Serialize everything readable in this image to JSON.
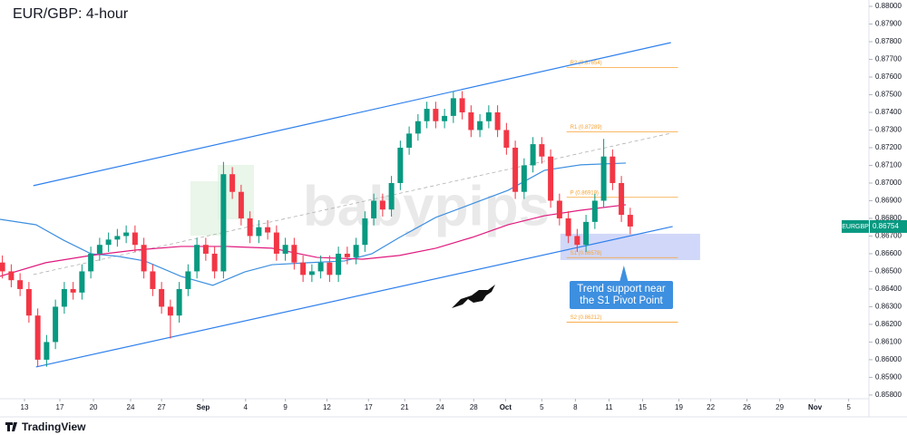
{
  "chart_data": {
    "type": "candlestick",
    "title": "EUR/GBP: 4-hour",
    "watermark": "babypips",
    "brand": "TradingView",
    "symbol": "EURGBP",
    "last_price": {
      "value": 0.86754,
      "label": "0.86754"
    },
    "grid": false,
    "xlim": [
      -2.77,
      95.49
    ],
    "ylim": [
      0.85779,
      0.88036
    ],
    "xticks": [
      {
        "value": 0,
        "label": "13"
      },
      {
        "value": 4,
        "label": "17"
      },
      {
        "value": 7.8,
        "label": "20"
      },
      {
        "value": 12,
        "label": "24"
      },
      {
        "value": 15.5,
        "label": "27"
      },
      {
        "value": 20.2,
        "label": "Sep"
      },
      {
        "value": 25,
        "label": "4"
      },
      {
        "value": 29.5,
        "label": "9"
      },
      {
        "value": 34.2,
        "label": "12"
      },
      {
        "value": 38.9,
        "label": "17"
      },
      {
        "value": 43,
        "label": "21"
      },
      {
        "value": 47,
        "label": "24"
      },
      {
        "value": 50.8,
        "label": "28"
      },
      {
        "value": 54.4,
        "label": "Oct"
      },
      {
        "value": 58.5,
        "label": "5"
      },
      {
        "value": 62.3,
        "label": "8"
      },
      {
        "value": 66.1,
        "label": "11"
      },
      {
        "value": 69.9,
        "label": "15"
      },
      {
        "value": 74,
        "label": "19"
      },
      {
        "value": 77.6,
        "label": "22"
      },
      {
        "value": 81.7,
        "label": "26"
      },
      {
        "value": 85.4,
        "label": "29"
      },
      {
        "value": 89.4,
        "label": "Nov"
      },
      {
        "value": 93.2,
        "label": "5"
      }
    ],
    "yticks": [
      {
        "value": 0.858,
        "label": "0.85800"
      },
      {
        "value": 0.859,
        "label": "0.85900"
      },
      {
        "value": 0.86,
        "label": "0.86000"
      },
      {
        "value": 0.861,
        "label": "0.86100"
      },
      {
        "value": 0.862,
        "label": "0.86200"
      },
      {
        "value": 0.863,
        "label": "0.86300"
      },
      {
        "value": 0.864,
        "label": "0.86400"
      },
      {
        "value": 0.865,
        "label": "0.86500"
      },
      {
        "value": 0.866,
        "label": "0.86600"
      },
      {
        "value": 0.867,
        "label": "0.86700"
      },
      {
        "value": 0.868,
        "label": "0.86800"
      },
      {
        "value": 0.869,
        "label": "0.86900"
      },
      {
        "value": 0.87,
        "label": "0.87000"
      },
      {
        "value": 0.871,
        "label": "0.87100"
      },
      {
        "value": 0.872,
        "label": "0.87200"
      },
      {
        "value": 0.873,
        "label": "0.87300"
      },
      {
        "value": 0.874,
        "label": "0.87400"
      },
      {
        "value": 0.875,
        "label": "0.87500"
      },
      {
        "value": 0.876,
        "label": "0.87600"
      },
      {
        "value": 0.877,
        "label": "0.87700"
      },
      {
        "value": 0.878,
        "label": "0.87800"
      },
      {
        "value": 0.879,
        "label": "0.87900"
      },
      {
        "value": 0.88,
        "label": "0.88000"
      }
    ],
    "candles": {
      "up_color": "#089981",
      "down_color": "#f23645",
      "x": [
        -2.5,
        -1.5,
        -0.5,
        0.5,
        1.5,
        2.5,
        3.5,
        4.5,
        5.5,
        6.5,
        7.5,
        8.5,
        9.5,
        10.5,
        11.5,
        12.5,
        13.5,
        14.5,
        15.5,
        16.5,
        17.5,
        18.5,
        19.5,
        20.5,
        21.5,
        22.5,
        23.5,
        24.5,
        25.5,
        26.5,
        27.5,
        28.5,
        29.5,
        30.5,
        31.5,
        32.5,
        33.5,
        34.5,
        35.5,
        36.5,
        37.5,
        38.5,
        39.5,
        40.5,
        41.5,
        42.5,
        43.5,
        44.5,
        45.5,
        46.5,
        47.5,
        48.5,
        49.5,
        50.5,
        51.5,
        52.5,
        53.5,
        54.5,
        55.5,
        56.5,
        57.5,
        58.5,
        59.5,
        60.5,
        61.5,
        62.5,
        63.5,
        64.5,
        65.5,
        66.5,
        67.5,
        68.5
      ],
      "open": [
        0.8655,
        0.865,
        0.8645,
        0.864,
        0.8625,
        0.86,
        0.861,
        0.863,
        0.864,
        0.8638,
        0.865,
        0.866,
        0.8665,
        0.8668,
        0.867,
        0.8672,
        0.8665,
        0.865,
        0.864,
        0.863,
        0.8625,
        0.864,
        0.865,
        0.8665,
        0.866,
        0.865,
        0.8705,
        0.8695,
        0.868,
        0.867,
        0.8675,
        0.8672,
        0.866,
        0.8665,
        0.8655,
        0.8648,
        0.865,
        0.8655,
        0.8648,
        0.866,
        0.8658,
        0.8665,
        0.868,
        0.869,
        0.8685,
        0.87,
        0.872,
        0.8728,
        0.8735,
        0.8742,
        0.8735,
        0.8738,
        0.8748,
        0.874,
        0.873,
        0.8735,
        0.874,
        0.873,
        0.872,
        0.8695,
        0.871,
        0.8722,
        0.8715,
        0.869,
        0.868,
        0.867,
        0.8665,
        0.8678,
        0.869,
        0.8715,
        0.87,
        0.8682
      ],
      "high": [
        0.8659,
        0.8654,
        0.8649,
        0.8644,
        0.8629,
        0.8614,
        0.8634,
        0.8644,
        0.8644,
        0.8654,
        0.8664,
        0.8669,
        0.8672,
        0.8674,
        0.8676,
        0.8676,
        0.8669,
        0.8654,
        0.8644,
        0.8634,
        0.8644,
        0.8654,
        0.8669,
        0.8669,
        0.8664,
        0.8712,
        0.8709,
        0.8699,
        0.8684,
        0.8679,
        0.8679,
        0.8676,
        0.8669,
        0.8669,
        0.8659,
        0.8654,
        0.8659,
        0.8659,
        0.8664,
        0.8664,
        0.8669,
        0.8684,
        0.8694,
        0.8694,
        0.8704,
        0.8724,
        0.8732,
        0.8739,
        0.8746,
        0.8746,
        0.8742,
        0.8752,
        0.8752,
        0.8744,
        0.8739,
        0.8744,
        0.8744,
        0.8734,
        0.8724,
        0.8714,
        0.8726,
        0.8726,
        0.8719,
        0.8694,
        0.8684,
        0.8674,
        0.8682,
        0.8694,
        0.8725,
        0.8719,
        0.8704,
        0.8686
      ],
      "low": [
        0.8646,
        0.8641,
        0.8636,
        0.8621,
        0.8596,
        0.8596,
        0.8606,
        0.8626,
        0.8634,
        0.8634,
        0.8646,
        0.8656,
        0.8661,
        0.8664,
        0.8666,
        0.8661,
        0.8646,
        0.8636,
        0.8626,
        0.8612,
        0.8621,
        0.8636,
        0.8646,
        0.8656,
        0.8646,
        0.8646,
        0.8691,
        0.8676,
        0.8666,
        0.8666,
        0.8668,
        0.8656,
        0.8656,
        0.8651,
        0.8644,
        0.8644,
        0.8646,
        0.8644,
        0.8644,
        0.8654,
        0.8654,
        0.8661,
        0.8676,
        0.8681,
        0.8681,
        0.8696,
        0.8716,
        0.8724,
        0.8731,
        0.8731,
        0.8731,
        0.8734,
        0.8736,
        0.8726,
        0.8726,
        0.8731,
        0.8726,
        0.8716,
        0.8691,
        0.8691,
        0.8706,
        0.8711,
        0.8686,
        0.8676,
        0.8666,
        0.8661,
        0.8661,
        0.8674,
        0.8686,
        0.8696,
        0.8678,
        0.8671
      ],
      "close": [
        0.865,
        0.8645,
        0.864,
        0.8625,
        0.86,
        0.861,
        0.863,
        0.864,
        0.8638,
        0.865,
        0.866,
        0.8665,
        0.8668,
        0.867,
        0.8672,
        0.8665,
        0.865,
        0.864,
        0.863,
        0.8625,
        0.864,
        0.865,
        0.8665,
        0.866,
        0.865,
        0.8705,
        0.8695,
        0.868,
        0.867,
        0.8675,
        0.8672,
        0.866,
        0.8665,
        0.8655,
        0.8648,
        0.865,
        0.8655,
        0.8648,
        0.866,
        0.8658,
        0.8665,
        0.868,
        0.869,
        0.8685,
        0.87,
        0.872,
        0.8728,
        0.8735,
        0.8742,
        0.8735,
        0.8738,
        0.8748,
        0.874,
        0.873,
        0.8735,
        0.874,
        0.873,
        0.872,
        0.8695,
        0.871,
        0.8722,
        0.8715,
        0.869,
        0.868,
        0.867,
        0.8665,
        0.8678,
        0.869,
        0.8715,
        0.87,
        0.8682,
        0.86754
      ]
    },
    "overlays": [
      {
        "color": "#2f80ed",
        "dash": false,
        "x": [
          1.0,
          73.1
        ],
        "values": [
          0.86985,
          0.87795
        ]
      },
      {
        "color": "#2f80ed",
        "dash": false,
        "x": [
          1.3,
          73.3
        ],
        "values": [
          0.85959,
          0.86754
        ]
      },
      {
        "color": "#b0b0b0",
        "dash": true,
        "x": [
          1.0,
          73.1
        ],
        "values": [
          0.86482,
          0.87282
        ]
      },
      {
        "color": "#3d8fe0",
        "dash": false,
        "x": [
          -2.8,
          1.3,
          4.4,
          7.5,
          10.6,
          13.6,
          17.7,
          21.3,
          24.9,
          28.0,
          32.1,
          36.2,
          39.3,
          42.4,
          46.5,
          50.6,
          54.7,
          58.8,
          62.9,
          68.0
        ],
        "values": [
          0.86795,
          0.86764,
          0.86677,
          0.866,
          0.86585,
          0.86559,
          0.86472,
          0.86421,
          0.86497,
          0.86538,
          0.86549,
          0.86559,
          0.866,
          0.86692,
          0.86805,
          0.86882,
          0.86959,
          0.87072,
          0.87103,
          0.87113
        ]
      },
      {
        "color": "#e0197d",
        "dash": false,
        "x": [
          -2.8,
          2.4,
          7.5,
          12.6,
          17.7,
          22.9,
          28.0,
          33.1,
          38.3,
          42.4,
          46.5,
          50.6,
          54.7,
          58.8,
          62.9,
          68.0
        ],
        "values": [
          0.86472,
          0.86549,
          0.8659,
          0.86621,
          0.86641,
          0.86641,
          0.86631,
          0.86579,
          0.86569,
          0.8659,
          0.86631,
          0.86692,
          0.86764,
          0.86815,
          0.86846,
          0.86877
        ]
      }
    ],
    "pivots": {
      "color": "#f7a233",
      "x": [
        61.3,
        73.9
      ],
      "levels": [
        {
          "value": 0.87654,
          "label": "R2 (0.87654)"
        },
        {
          "value": 0.87289,
          "label": "R1 (0.87289)"
        },
        {
          "value": 0.86919,
          "label": "P (0.86919)"
        },
        {
          "value": 0.86578,
          "label": "S1 (0.86578)"
        },
        {
          "value": 0.86212,
          "label": "S2 (0.86212)"
        }
      ]
    },
    "support_zone": {
      "color": "#9aa7f0",
      "x": [
        60.6,
        76.4
      ],
      "y": [
        0.86564,
        0.86713
      ]
    },
    "annotation": {
      "color": "#3d8fe0",
      "lines": [
        "Trend support near",
        "the S1 Pivot Point"
      ]
    }
  }
}
